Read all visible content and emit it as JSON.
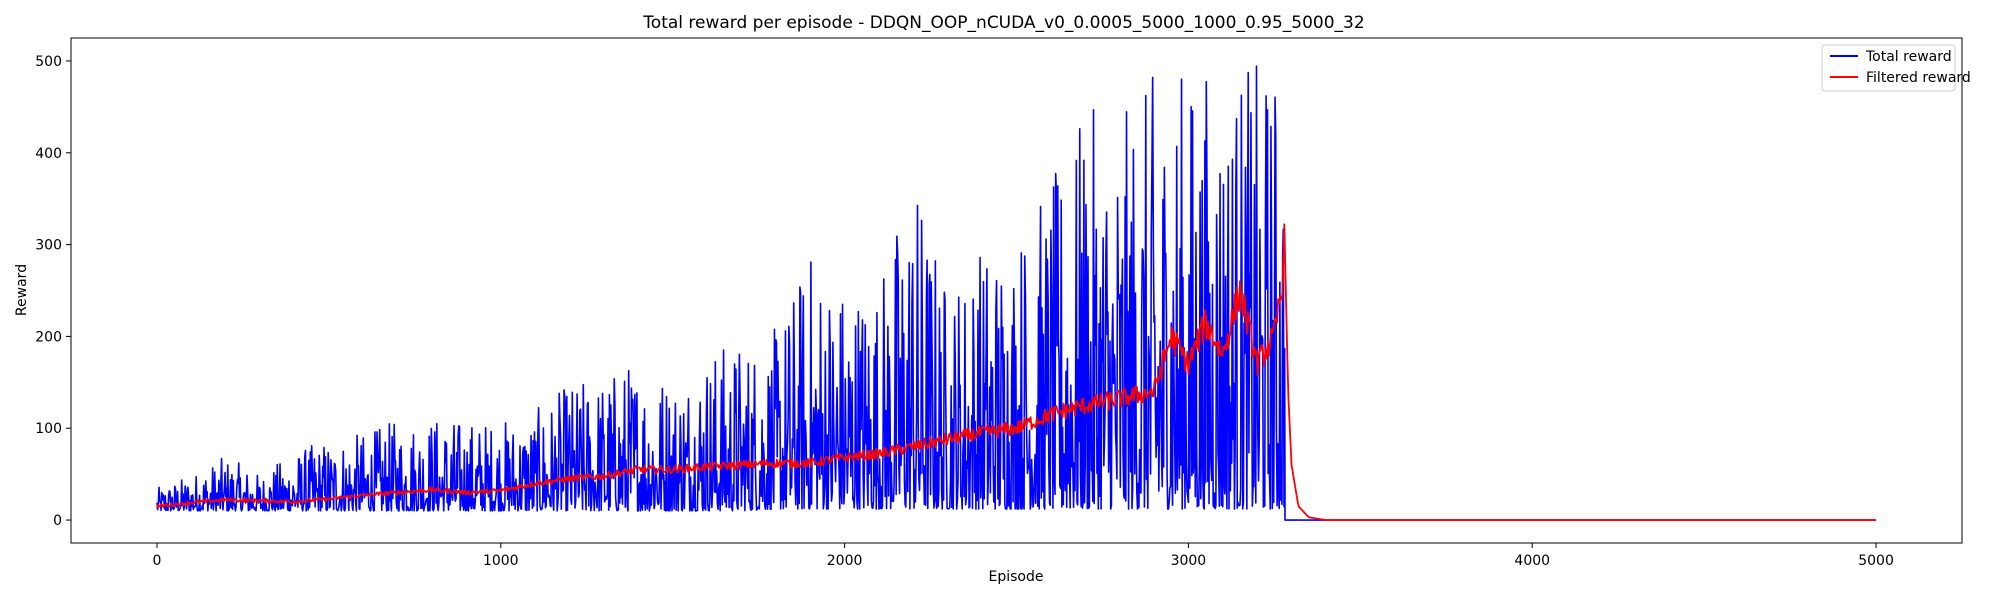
{
  "chart_data": {
    "type": "line",
    "title": "Total reward per episode - DDQN_OOP_nCUDA_v0_0.0005_5000_1000_0.95_5000_32",
    "xlabel": "Episode",
    "ylabel": "Reward",
    "xlim": [
      -250,
      5250
    ],
    "ylim": [
      -25,
      525
    ],
    "xticks": [
      0,
      1000,
      2000,
      3000,
      4000,
      5000
    ],
    "yticks": [
      0,
      100,
      200,
      300,
      400,
      500
    ],
    "xtick_labels": [
      "0",
      "1000",
      "2000",
      "3000",
      "4000",
      "5000"
    ],
    "ytick_labels": [
      "0",
      "100",
      "200",
      "300",
      "400",
      "500"
    ],
    "grid": false,
    "legend_position": "top-right",
    "series": [
      {
        "name": "Total reward",
        "color": "#0000ff",
        "x": [
          0,
          100,
          200,
          300,
          400,
          500,
          600,
          700,
          800,
          900,
          1000,
          1100,
          1200,
          1300,
          1400,
          1500,
          1600,
          1700,
          1800,
          1900,
          2000,
          2100,
          2200,
          2300,
          2400,
          2500,
          2600,
          2700,
          2800,
          2900,
          3000,
          3100,
          3200,
          3250,
          3280,
          3281,
          5000
        ],
        "envelope_low": [
          10,
          10,
          10,
          10,
          10,
          10,
          10,
          10,
          10,
          10,
          10,
          10,
          10,
          10,
          10,
          10,
          10,
          10,
          12,
          12,
          12,
          12,
          12,
          12,
          12,
          12,
          12,
          12,
          12,
          12,
          12,
          12,
          12,
          12,
          12,
          0,
          0
        ],
        "envelope_high": [
          35,
          50,
          70,
          50,
          75,
          90,
          95,
          110,
          115,
          110,
          110,
          120,
          150,
          160,
          180,
          160,
          190,
          200,
          210,
          300,
          265,
          270,
          390,
          260,
          310,
          325,
          370,
          450,
          440,
          490,
          500,
          500,
          500,
          500,
          500,
          0,
          0
        ]
      },
      {
        "name": "Filtered reward",
        "color": "#ff0000",
        "x": [
          0,
          100,
          200,
          300,
          400,
          500,
          600,
          700,
          800,
          900,
          1000,
          1100,
          1200,
          1300,
          1400,
          1500,
          1600,
          1700,
          1800,
          1900,
          2000,
          2100,
          2200,
          2300,
          2400,
          2500,
          2600,
          2700,
          2800,
          2900,
          2950,
          3000,
          3050,
          3100,
          3150,
          3200,
          3250,
          3270,
          3280,
          3290,
          3300,
          3320,
          3350,
          3400,
          5000
        ],
        "values": [
          15,
          19,
          22,
          21,
          20,
          23,
          27,
          30,
          33,
          30,
          32,
          40,
          45,
          48,
          55,
          55,
          58,
          60,
          62,
          62,
          68,
          72,
          80,
          88,
          95,
          100,
          115,
          125,
          132,
          140,
          200,
          170,
          215,
          180,
          250,
          170,
          200,
          250,
          305,
          140,
          60,
          15,
          3,
          0,
          0
        ]
      }
    ]
  }
}
